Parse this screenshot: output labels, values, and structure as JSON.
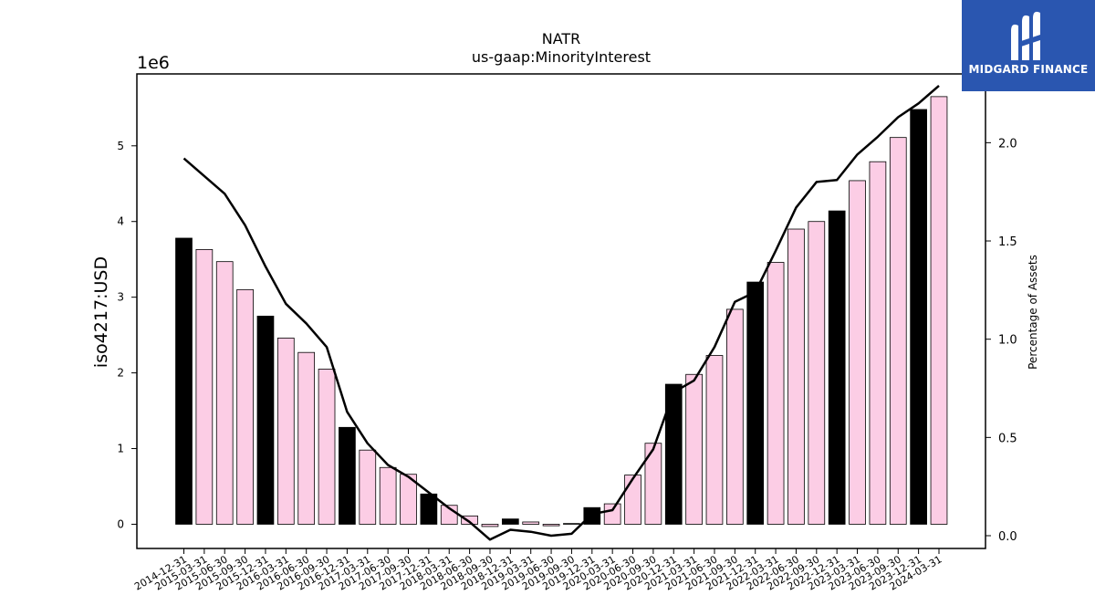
{
  "chart_data": {
    "type": "bar+line",
    "title": "NATR",
    "subtitle": "us-gaap:MinorityInterest",
    "ylabel": "iso4217:USD",
    "y2label": "Percentage of Assets",
    "y_scale_label": "1e6",
    "ylim": [
      -0.32,
      5.95
    ],
    "y2lim": [
      -0.065,
      2.35
    ],
    "yticks": [
      0,
      1,
      2,
      3,
      4,
      5
    ],
    "y2ticks": [
      0.0,
      0.5,
      1.0,
      1.5,
      2.0
    ],
    "y2tick_labels": [
      "0.0",
      "0.5",
      "1.0",
      "1.5",
      "2.0"
    ],
    "categories": [
      "2014-12-31",
      "2015-03-31",
      "2015-06-30",
      "2015-09-30",
      "2015-12-31",
      "2016-03-31",
      "2016-06-30",
      "2016-09-30",
      "2016-12-31",
      "2017-03-31",
      "2017-06-30",
      "2017-09-30",
      "2017-12-31",
      "2018-03-31",
      "2018-06-30",
      "2018-09-30",
      "2018-12-31",
      "2019-03-31",
      "2019-06-30",
      "2019-09-30",
      "2019-12-31",
      "2020-03-31",
      "2020-06-30",
      "2020-09-30",
      "2020-12-31",
      "2021-03-31",
      "2021-06-30",
      "2021-09-30",
      "2021-12-31",
      "2022-03-31",
      "2022-06-30",
      "2022-09-30",
      "2022-12-31",
      "2023-03-31",
      "2023-06-30",
      "2023-09-30",
      "2023-12-31",
      "2024-03-31"
    ],
    "bar_values": [
      3.78,
      3.63,
      3.47,
      3.1,
      2.75,
      2.46,
      2.27,
      2.05,
      1.28,
      0.98,
      0.75,
      0.66,
      0.4,
      0.25,
      0.11,
      -0.03,
      0.07,
      0.03,
      -0.02,
      0.01,
      0.22,
      0.27,
      0.65,
      1.07,
      1.85,
      1.98,
      2.23,
      2.84,
      3.2,
      3.46,
      3.9,
      4.0,
      4.14,
      4.54,
      4.79,
      5.11,
      5.48,
      5.65
    ],
    "bar_colors": [
      "#000000",
      "#fccde5",
      "#fccde5",
      "#fccde5",
      "#000000",
      "#fccde5",
      "#fccde5",
      "#fccde5",
      "#000000",
      "#fccde5",
      "#fccde5",
      "#fccde5",
      "#000000",
      "#fccde5",
      "#fccde5",
      "#fccde5",
      "#000000",
      "#fccde5",
      "#fccde5",
      "#fccde5",
      "#000000",
      "#fccde5",
      "#fccde5",
      "#fccde5",
      "#000000",
      "#fccde5",
      "#fccde5",
      "#fccde5",
      "#000000",
      "#fccde5",
      "#fccde5",
      "#fccde5",
      "#000000",
      "#fccde5",
      "#fccde5",
      "#fccde5",
      "#000000",
      "#fccde5"
    ],
    "line_values": [
      1.92,
      1.83,
      1.74,
      1.58,
      1.37,
      1.18,
      1.08,
      0.96,
      0.63,
      0.47,
      0.36,
      0.3,
      0.22,
      0.14,
      0.07,
      -0.02,
      0.03,
      0.02,
      0.0,
      0.01,
      0.11,
      0.13,
      0.29,
      0.44,
      0.73,
      0.79,
      0.96,
      1.19,
      1.24,
      1.45,
      1.67,
      1.8,
      1.81,
      1.94,
      2.03,
      2.13,
      2.2,
      2.29
    ],
    "line_color": "#000000",
    "grid": false,
    "legend": "none"
  },
  "logo": {
    "text": "MIDGARD FINANCE",
    "bg_color": "#2a56b0"
  }
}
